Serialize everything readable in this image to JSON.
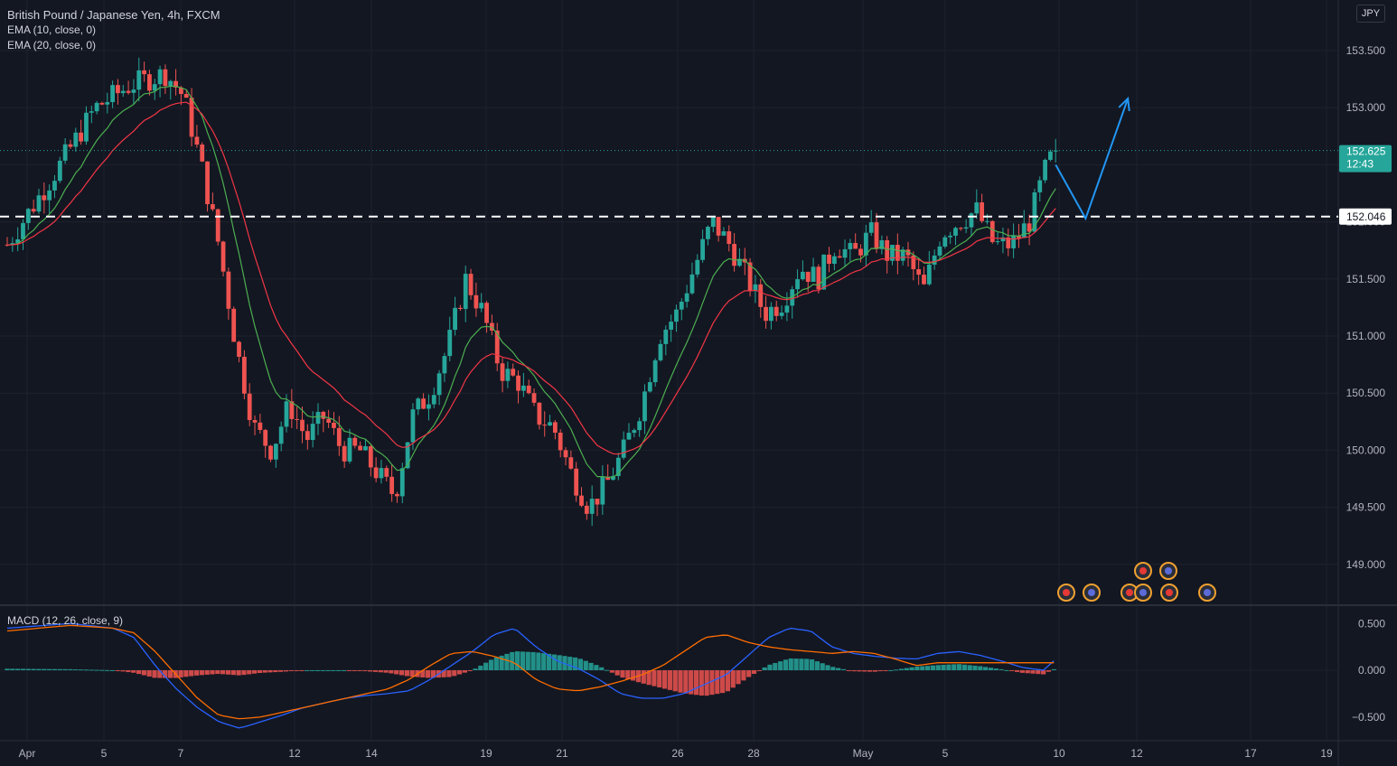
{
  "header": {
    "symbol_line": "British Pound / Japanese Yen, 4h, FXCM",
    "ema10_label": "EMA (10, close, 0)",
    "ema20_label": "EMA (20, close, 0)",
    "currency_button": "JPY"
  },
  "macd_label": "MACD (12, 26, close, 9)",
  "colors": {
    "background": "#131722",
    "up": "#26a69a",
    "down": "#ef5350",
    "ema10": "#4caf50",
    "ema20": "#f23645",
    "macd_line": "#2962ff",
    "signal_line": "#ff6d00",
    "projection": "#2196f3",
    "grid": "#1e222d",
    "axis_text": "#b2b5be"
  },
  "chart_data": [
    {
      "type": "candlestick",
      "title": "British Pound / Japanese Yen, 4h, FXCM",
      "ylim": [
        148.8,
        153.7
      ],
      "y_ticks": [
        "153.500",
        "153.000",
        "152.500",
        "152.000",
        "151.500",
        "151.000",
        "150.500",
        "150.000",
        "149.500",
        "149.000"
      ],
      "x_ticks": [
        "Apr",
        "5",
        "7",
        "12",
        "14",
        "19",
        "21",
        "26",
        "28",
        "May",
        "5",
        "10",
        "12",
        "17",
        "19"
      ],
      "last_price": "152.625",
      "countdown": "12:43",
      "horizontal_level": "152.046",
      "price_path": [
        [
          0,
          151.8
        ],
        [
          3,
          152.5
        ],
        [
          5,
          153.0
        ],
        [
          7,
          153.2
        ],
        [
          9,
          153.3
        ],
        [
          10,
          153.1
        ],
        [
          11,
          152.5
        ],
        [
          12,
          151.8
        ],
        [
          13,
          150.9
        ],
        [
          14,
          150.2
        ],
        [
          15,
          150.0
        ],
        [
          16,
          150.4
        ],
        [
          17,
          150.1
        ],
        [
          18,
          150.3
        ],
        [
          19,
          150.0
        ],
        [
          20,
          150.0
        ],
        [
          21,
          149.8
        ],
        [
          22,
          149.6
        ],
        [
          23,
          150.3
        ],
        [
          24,
          150.5
        ],
        [
          25,
          150.9
        ],
        [
          26,
          151.5
        ],
        [
          27,
          151.2
        ],
        [
          28,
          150.7
        ],
        [
          29,
          150.6
        ],
        [
          30,
          150.3
        ],
        [
          31,
          150.2
        ],
        [
          32,
          149.8
        ],
        [
          33,
          149.5
        ],
        [
          34,
          149.7
        ],
        [
          35,
          150.0
        ],
        [
          36,
          150.4
        ],
        [
          37,
          151.0
        ],
        [
          38,
          151.2
        ],
        [
          39,
          151.6
        ],
        [
          40,
          152.0
        ],
        [
          41,
          151.8
        ],
        [
          42,
          151.5
        ],
        [
          43,
          151.2
        ],
        [
          44,
          151.3
        ],
        [
          45,
          151.6
        ],
        [
          46,
          151.5
        ],
        [
          47,
          151.8
        ],
        [
          48,
          151.7
        ],
        [
          49,
          151.9
        ],
        [
          50,
          151.7
        ],
        [
          51,
          151.7
        ],
        [
          52,
          151.4
        ],
        [
          53,
          151.9
        ],
        [
          54,
          152.0
        ],
        [
          55,
          152.1
        ],
        [
          56,
          151.8
        ],
        [
          57,
          151.8
        ],
        [
          58,
          152.0
        ],
        [
          59,
          152.5
        ],
        [
          59.5,
          152.625
        ]
      ],
      "series": [
        {
          "name": "EMA (10, close, 0)"
        },
        {
          "name": "EMA (20, close, 0)"
        }
      ],
      "projection": [
        [
          59.5,
          152.5
        ],
        [
          61.2,
          152.03
        ],
        [
          63.6,
          153.08
        ]
      ]
    },
    {
      "type": "macd",
      "title": "MACD (12, 26, close, 9)",
      "ylim": [
        -0.7,
        0.65
      ],
      "y_ticks": [
        "0.500",
        "0.000",
        "−0.500"
      ],
      "macd_path": [
        [
          0,
          0.45
        ],
        [
          3,
          0.5
        ],
        [
          5,
          0.45
        ],
        [
          6,
          0.35
        ],
        [
          7,
          0.05
        ],
        [
          8,
          -0.2
        ],
        [
          9,
          -0.4
        ],
        [
          10,
          -0.55
        ],
        [
          11,
          -0.62
        ],
        [
          12,
          -0.55
        ],
        [
          13,
          -0.48
        ],
        [
          14,
          -0.4
        ],
        [
          15,
          -0.35
        ],
        [
          16,
          -0.3
        ],
        [
          17,
          -0.27
        ],
        [
          18,
          -0.25
        ],
        [
          19,
          -0.22
        ],
        [
          20,
          -0.1
        ],
        [
          21,
          0.05
        ],
        [
          22,
          0.2
        ],
        [
          23,
          0.38
        ],
        [
          24,
          0.45
        ],
        [
          25,
          0.25
        ],
        [
          26,
          0.1
        ],
        [
          27,
          0.02
        ],
        [
          28,
          -0.1
        ],
        [
          29,
          -0.25
        ],
        [
          30,
          -0.3
        ],
        [
          31,
          -0.3
        ],
        [
          32,
          -0.25
        ],
        [
          33,
          -0.15
        ],
        [
          34,
          -0.05
        ],
        [
          35,
          0.15
        ],
        [
          36,
          0.35
        ],
        [
          37,
          0.45
        ],
        [
          38,
          0.42
        ],
        [
          39,
          0.25
        ],
        [
          40,
          0.18
        ],
        [
          41,
          0.15
        ],
        [
          42,
          0.13
        ],
        [
          43,
          0.12
        ],
        [
          44,
          0.18
        ],
        [
          45,
          0.2
        ],
        [
          46,
          0.16
        ],
        [
          47,
          0.1
        ],
        [
          48,
          0.03
        ],
        [
          49,
          0.0
        ],
        [
          49.5,
          0.1
        ]
      ],
      "signal_path": [
        [
          0,
          0.42
        ],
        [
          3,
          0.48
        ],
        [
          5,
          0.45
        ],
        [
          6,
          0.4
        ],
        [
          7,
          0.2
        ],
        [
          8,
          -0.05
        ],
        [
          9,
          -0.3
        ],
        [
          10,
          -0.48
        ],
        [
          11,
          -0.52
        ],
        [
          12,
          -0.5
        ],
        [
          13,
          -0.45
        ],
        [
          14,
          -0.4
        ],
        [
          15,
          -0.35
        ],
        [
          16,
          -0.3
        ],
        [
          17,
          -0.25
        ],
        [
          18,
          -0.2
        ],
        [
          19,
          -0.1
        ],
        [
          20,
          0.05
        ],
        [
          21,
          0.18
        ],
        [
          22,
          0.2
        ],
        [
          23,
          0.15
        ],
        [
          24,
          0.08
        ],
        [
          25,
          -0.1
        ],
        [
          26,
          -0.2
        ],
        [
          27,
          -0.22
        ],
        [
          28,
          -0.18
        ],
        [
          29,
          -0.12
        ],
        [
          30,
          -0.05
        ],
        [
          31,
          0.05
        ],
        [
          32,
          0.2
        ],
        [
          33,
          0.35
        ],
        [
          34,
          0.38
        ],
        [
          35,
          0.3
        ],
        [
          36,
          0.25
        ],
        [
          37,
          0.22
        ],
        [
          38,
          0.2
        ],
        [
          39,
          0.18
        ],
        [
          40,
          0.2
        ],
        [
          41,
          0.18
        ],
        [
          42,
          0.12
        ],
        [
          43,
          0.05
        ],
        [
          44,
          0.08
        ]
      ]
    }
  ]
}
